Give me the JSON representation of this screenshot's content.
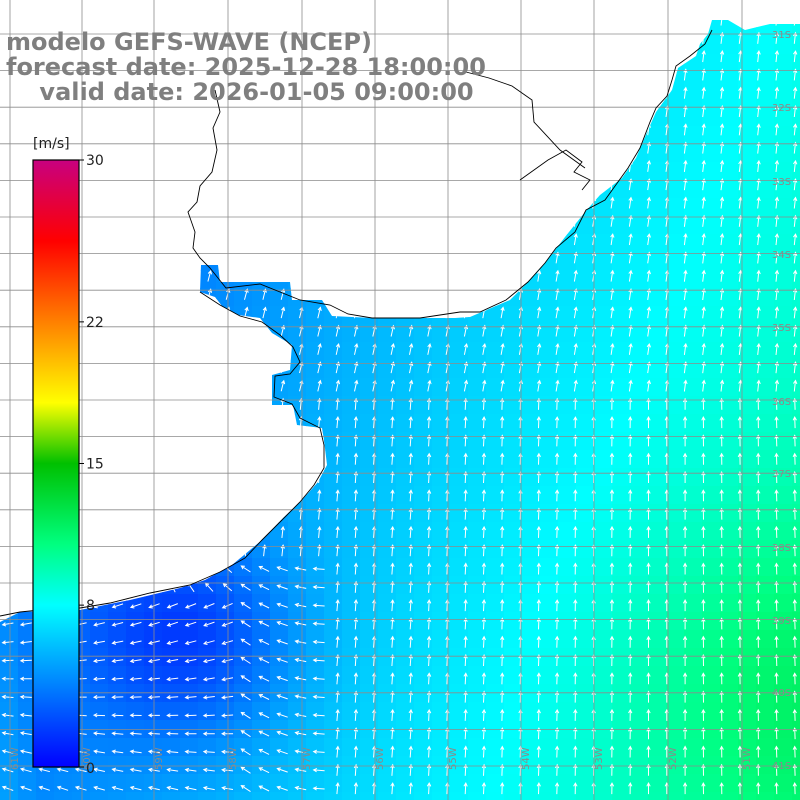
{
  "titles": {
    "line1": "modelo GEFS-WAVE (NCEP)",
    "line2": "forecast date: 2025-12-28 18:00:00",
    "line3": "    valid date: 2026-01-05 09:00:00"
  },
  "colorbar": {
    "unit": "[m/s]",
    "ticks": [
      "0",
      "8",
      "15",
      "22",
      "30"
    ],
    "min": 0,
    "max": 30,
    "stops": [
      {
        "v": 0,
        "c": "#0000ff"
      },
      {
        "v": 4,
        "c": "#0080ff"
      },
      {
        "v": 8,
        "c": "#00ffff"
      },
      {
        "v": 11,
        "c": "#00ff80"
      },
      {
        "v": 15,
        "c": "#00c000"
      },
      {
        "v": 18,
        "c": "#ffff00"
      },
      {
        "v": 22,
        "c": "#ff8000"
      },
      {
        "v": 26,
        "c": "#ff0000"
      },
      {
        "v": 30,
        "c": "#c80080"
      }
    ]
  },
  "graticule": {
    "lat_labels": [
      "31S",
      "32S",
      "33S",
      "34S",
      "35S",
      "36S",
      "37S",
      "38S",
      "39S",
      "40S",
      "41S"
    ],
    "lon_labels": [
      "61W",
      "60W",
      "59W",
      "58W",
      "57W",
      "56W",
      "55W",
      "54W",
      "53W",
      "52W",
      "51W"
    ]
  },
  "colors": {
    "land": "#ffffff",
    "grid": "#8c8c8c",
    "coast": "#000000",
    "arrow": "#ffffff",
    "title": "#7f7f7f"
  }
}
